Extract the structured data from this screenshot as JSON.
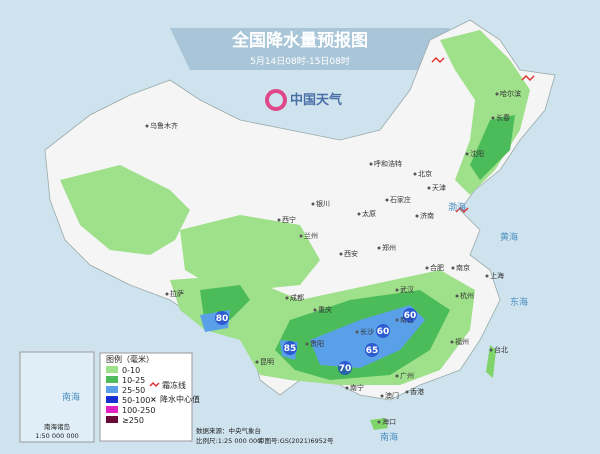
{
  "header": {
    "title": "全国降水量预报图",
    "subtitle": "5月14日08时-15日08时",
    "logo": "中国天气"
  },
  "cities": [
    "乌鲁木齐",
    "哈尔滨",
    "长春",
    "沈阳",
    "呼和浩特",
    "北京",
    "天津",
    "石家庄",
    "银川",
    "太原",
    "济南",
    "西宁",
    "兰州",
    "西安",
    "郑州",
    "合肥",
    "南京",
    "上海",
    "拉萨",
    "成都",
    "重庆",
    "武汉",
    "杭州",
    "贵阳",
    "长沙",
    "南昌",
    "福州",
    "昆明",
    "南宁",
    "广州",
    "台北",
    "香港",
    "澳门",
    "海口"
  ],
  "seas": [
    "渤海",
    "黄海",
    "东海",
    "南海",
    "南海"
  ],
  "rain_centers": [
    80,
    85,
    70,
    65,
    60,
    60
  ],
  "legend": {
    "title": "图例（毫米）",
    "items": [
      "0-10",
      "10-25",
      "25-50",
      "50-100",
      "100-250",
      "≥250"
    ],
    "frost": "霜冻线",
    "center": "降水中心值"
  },
  "inset": {
    "label": "南海诸岛",
    "scale": "1:50 000 000"
  },
  "footer": {
    "source": "数据来源：中央气象台",
    "scale": "比例尺:1:25 000 000",
    "approval": "审图号:GS(2021)6952号"
  }
}
